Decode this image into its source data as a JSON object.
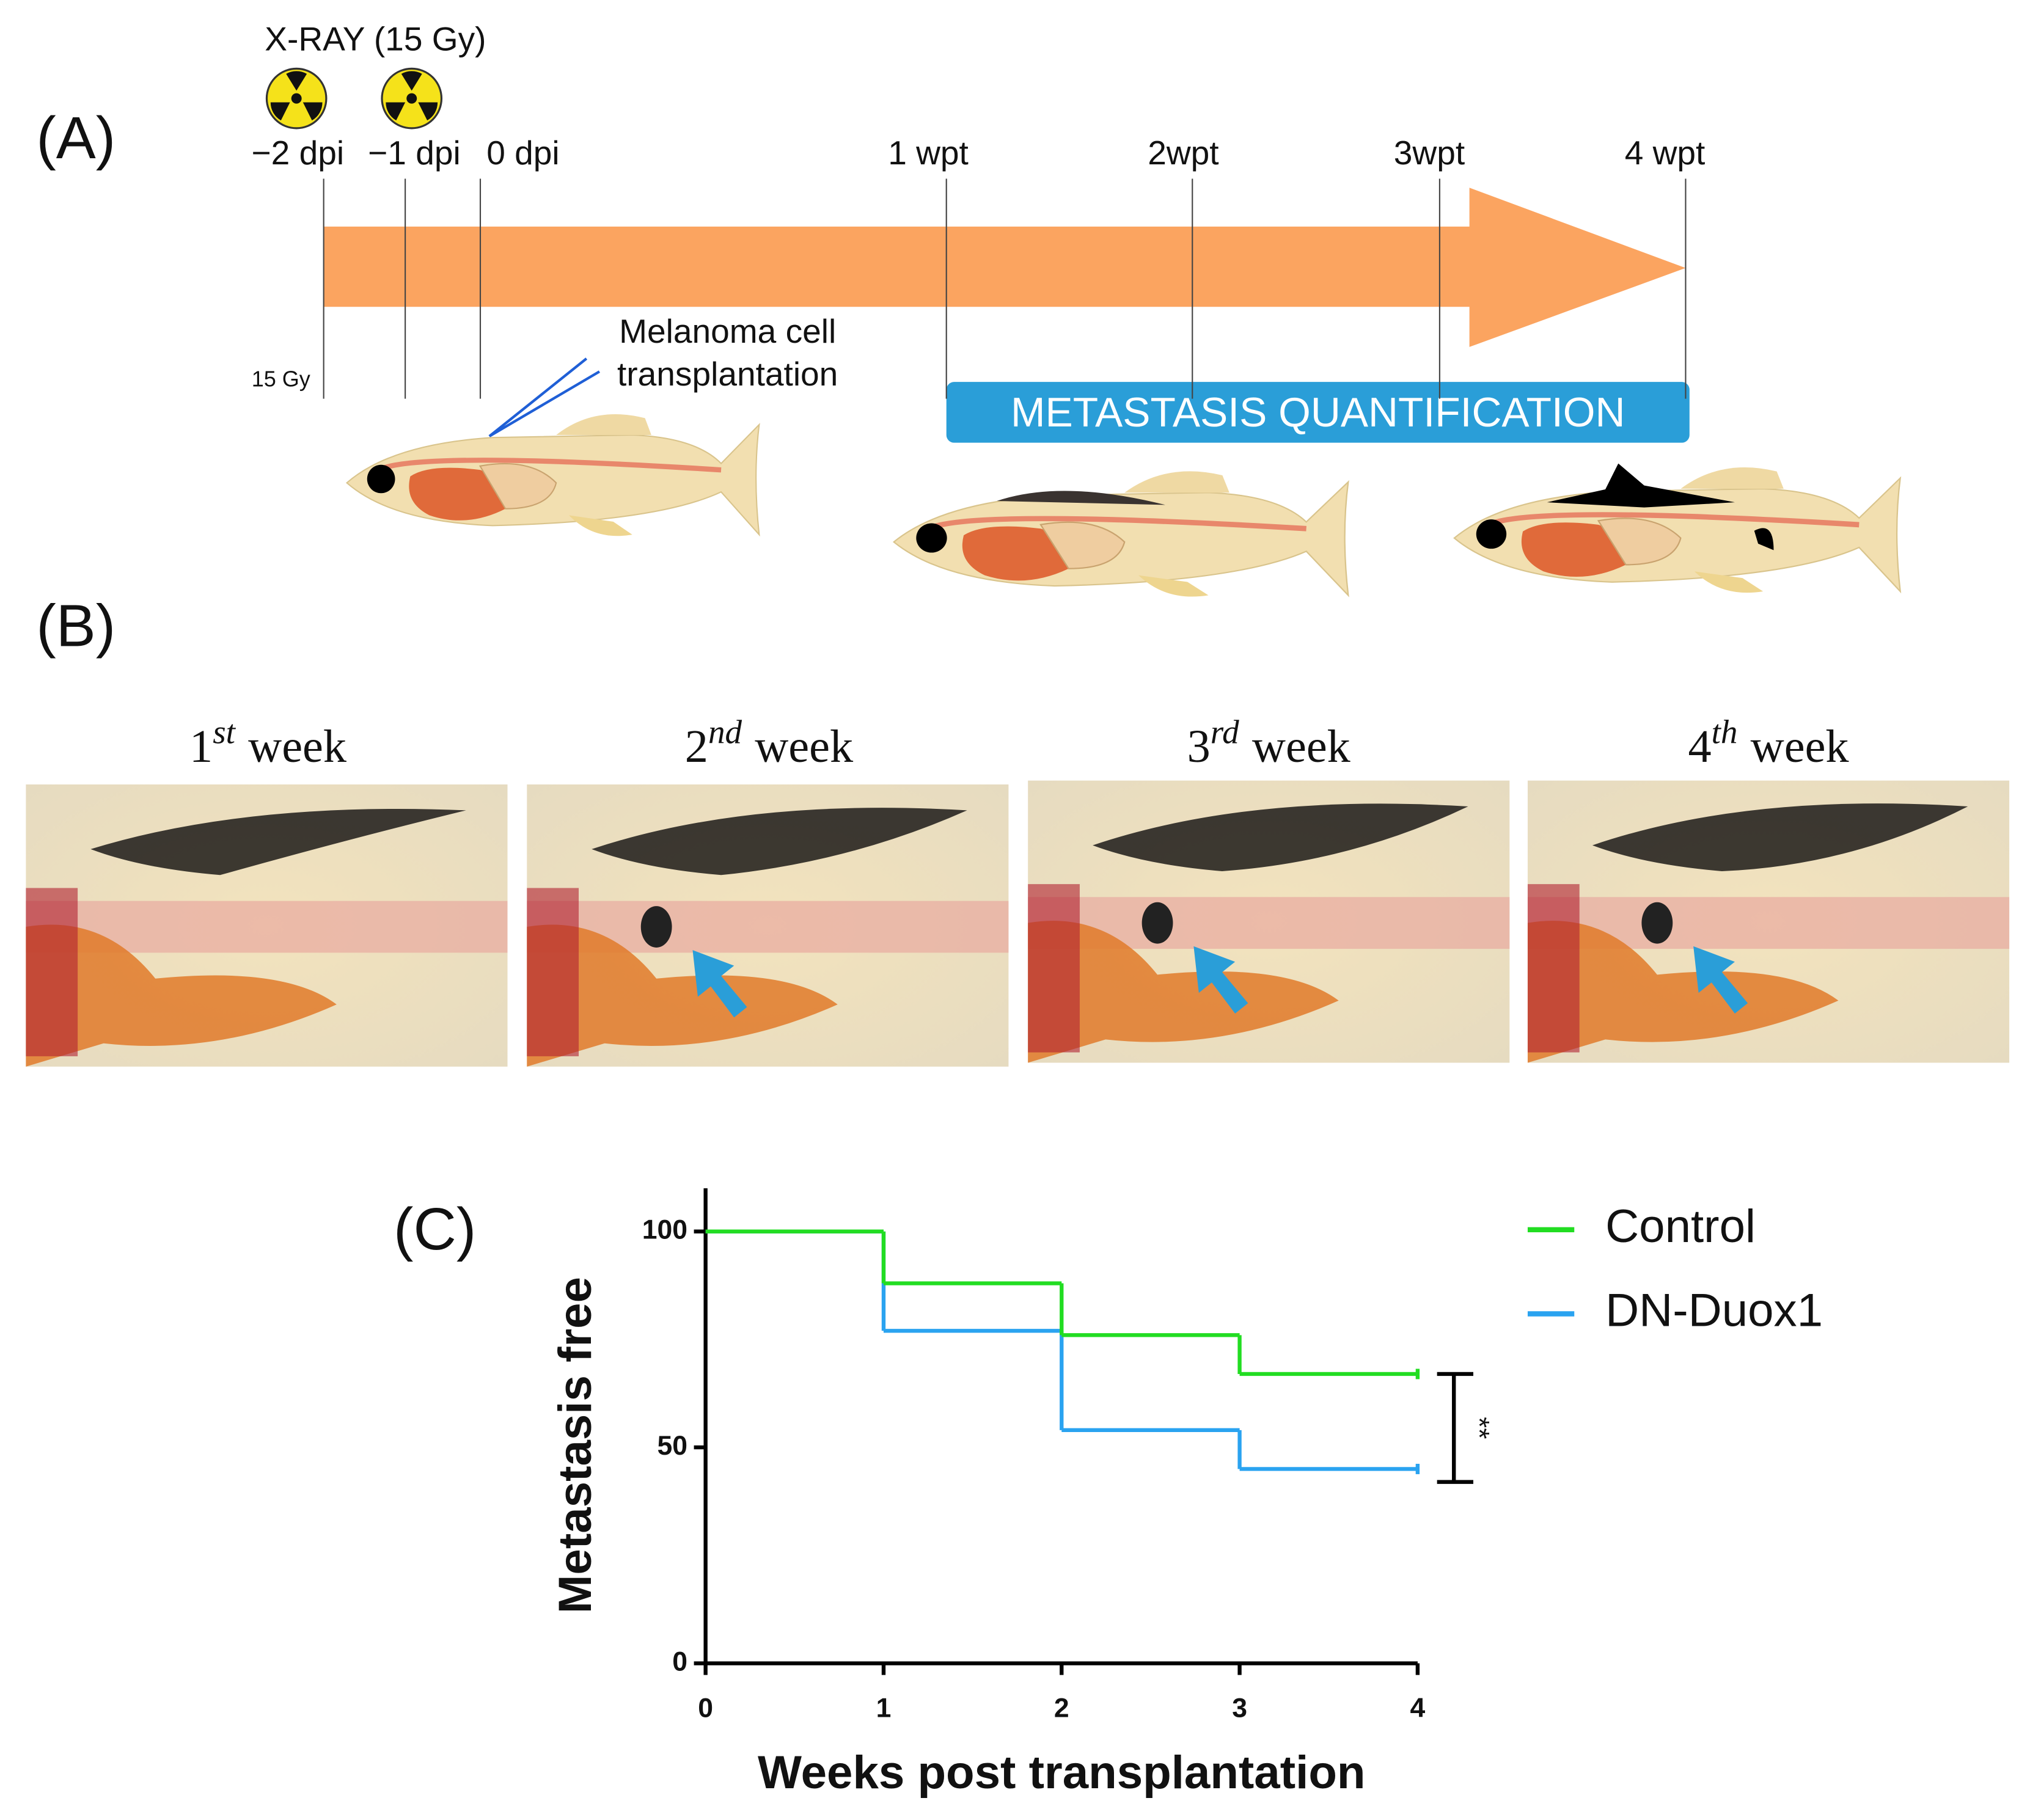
{
  "panel_a": {
    "label": "(A)",
    "xray": "X-RAY (15 Gy)",
    "dose": "15 Gy",
    "timeline": [
      "−2 dpi",
      "−1 dpi",
      "0 dpi",
      "1 wpt",
      "2wpt",
      "3wpt",
      "4 wpt"
    ],
    "injection": [
      "Melanoma cell",
      "transplantation"
    ],
    "bar": "METASTASIS QUANTIFICATION"
  },
  "panel_b": {
    "label": "(B)",
    "weeks": [
      {
        "num": "1",
        "sup": "st",
        "word": "week"
      },
      {
        "num": "2",
        "sup": "nd",
        "word": "week"
      },
      {
        "num": "3",
        "sup": "rd",
        "word": "week"
      },
      {
        "num": "4",
        "sup": "th",
        "word": "week"
      }
    ]
  },
  "chart_data": {
    "type": "line",
    "step": true,
    "panel": "(C)",
    "x_label": "Weeks post transplantation",
    "y_label": "Metastasis free",
    "x": [
      0,
      1,
      2,
      3,
      4
    ],
    "series": [
      {
        "name": "Control",
        "color": "#22dd22",
        "values": [
          100,
          88,
          76,
          67,
          67
        ]
      },
      {
        "name": "DN-Duox1",
        "color": "#2aa3f0",
        "values": [
          100,
          77,
          54,
          45,
          45
        ]
      }
    ],
    "xlim": [
      0,
      4
    ],
    "xticks": [
      0,
      1,
      2,
      3,
      4
    ],
    "ylim": [
      0,
      110
    ],
    "yticks": [
      0,
      50,
      100
    ],
    "significance": {
      "label": "**",
      "from": 42,
      "to": 67
    }
  }
}
